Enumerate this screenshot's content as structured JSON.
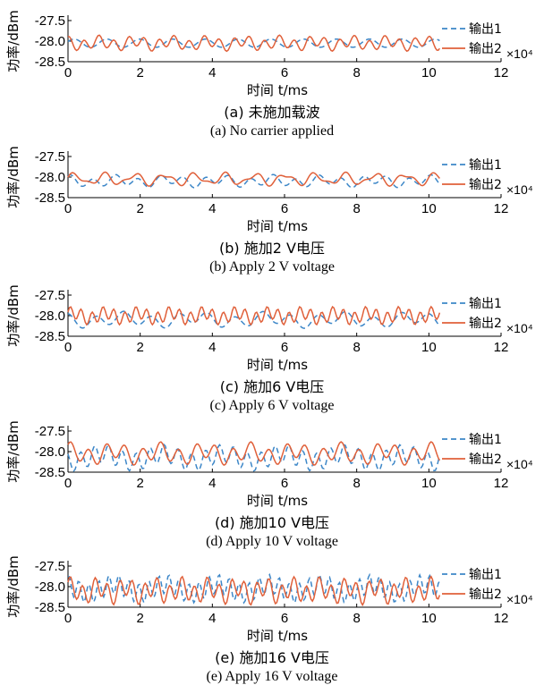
{
  "colors": {
    "series1": "#3d87c8",
    "series2": "#e0603a"
  },
  "chart_data": [
    {
      "type": "line",
      "panel": "a",
      "ylabel": "功率/dBm",
      "xlabel": "时间 t/ms",
      "xlim": [
        0,
        12
      ],
      "ylim": [
        -28.5,
        -27.5
      ],
      "xticks": [
        0,
        2,
        4,
        6,
        8,
        10,
        12
      ],
      "yticks": [
        -27.5,
        -28.0,
        -28.5
      ],
      "x_exponent": "×10⁴",
      "series": [
        {
          "name": "输出1",
          "style": "dashed",
          "x_end": 10.3,
          "freq": [
            1.1
          ],
          "amp": 0.13,
          "mean": -28.05,
          "phase": 0.4
        },
        {
          "name": "输出2",
          "style": "solid",
          "x_end": 10.3,
          "freq": [
            2.4,
            1.0
          ],
          "amp": 0.17,
          "mean": -28.05,
          "phase": 1.2
        }
      ],
      "caption_cn": "(a) 未施加载波",
      "caption_en": "(a) No carrier applied"
    },
    {
      "type": "line",
      "panel": "b",
      "ylabel": "功率/dBm",
      "xlabel": "时间 t/ms",
      "xlim": [
        0,
        12
      ],
      "ylim": [
        -28.5,
        -27.5
      ],
      "xticks": [
        0,
        2,
        4,
        6,
        8,
        10,
        12
      ],
      "yticks": [
        -27.5,
        -28.0,
        -28.5
      ],
      "x_exponent": "×10⁴",
      "series": [
        {
          "name": "输出1",
          "style": "dashed",
          "x_end": 10.3,
          "freq": [
            1.6,
            0.7
          ],
          "amp": 0.14,
          "mean": -28.1,
          "phase": 0.9
        },
        {
          "name": "输出2",
          "style": "solid",
          "x_end": 10.3,
          "freq": [
            1.2,
            2.1
          ],
          "amp": 0.15,
          "mean": -28.05,
          "phase": 0.2
        }
      ],
      "caption_cn": "(b) 施加2 V电压",
      "caption_en": "(b) Apply 2 V voltage"
    },
    {
      "type": "line",
      "panel": "c",
      "ylabel": "功率/dBm",
      "xlabel": "时间 t/ms",
      "xlim": [
        0,
        12
      ],
      "ylim": [
        -28.5,
        -27.5
      ],
      "xticks": [
        0,
        2,
        4,
        6,
        8,
        10,
        12
      ],
      "yticks": [
        -27.5,
        -28.0,
        -28.5
      ],
      "x_exponent": "×10⁴",
      "series": [
        {
          "name": "输出1",
          "style": "dashed",
          "x_end": 10.3,
          "freq": [
            1.3,
            0.5
          ],
          "amp": 0.18,
          "mean": -28.1,
          "phase": 1.5
        },
        {
          "name": "输出2",
          "style": "solid",
          "x_end": 10.3,
          "freq": [
            3.3,
            1.1
          ],
          "amp": 0.2,
          "mean": -28.0,
          "phase": 0.3
        }
      ],
      "caption_cn": "(c) 施加6 V电压",
      "caption_en": "(c) Apply 6 V voltage"
    },
    {
      "type": "line",
      "panel": "d",
      "ylabel": "功率/dBm",
      "xlabel": "时间 t/ms",
      "xlim": [
        0,
        12
      ],
      "ylim": [
        -28.5,
        -27.5
      ],
      "xticks": [
        0,
        2,
        4,
        6,
        8,
        10,
        12
      ],
      "yticks": [
        -27.5,
        -28.0,
        -28.5
      ],
      "x_exponent": "×10⁴",
      "series": [
        {
          "name": "输出1",
          "style": "dashed",
          "x_end": 10.3,
          "freq": [
            2.6,
            0.6
          ],
          "amp": 0.28,
          "mean": -28.15,
          "phase": 2.1
        },
        {
          "name": "输出2",
          "style": "solid",
          "x_end": 10.3,
          "freq": [
            2.0,
            0.8
          ],
          "amp": 0.25,
          "mean": -28.05,
          "phase": 0.7
        }
      ],
      "caption_cn": "(d) 施加10 V电压",
      "caption_en": "(d) Apply 10 V voltage"
    },
    {
      "type": "line",
      "panel": "e",
      "ylabel": "功率/dBm",
      "xlabel": "时间 t/ms",
      "xlim": [
        0,
        12
      ],
      "ylim": [
        -28.5,
        -27.5
      ],
      "xticks": [
        0,
        2,
        4,
        6,
        8,
        10,
        12
      ],
      "yticks": [
        -27.5,
        -28.0,
        -28.5
      ],
      "x_exponent": "×10⁴",
      "series": [
        {
          "name": "输出1",
          "style": "dashed",
          "x_end": 10.3,
          "freq": [
            3.6,
            0.7
          ],
          "amp": 0.3,
          "mean": -28.05,
          "phase": 1.1
        },
        {
          "name": "输出2",
          "style": "solid",
          "x_end": 10.3,
          "freq": [
            2.9,
            1.3
          ],
          "amp": 0.3,
          "mean": -28.1,
          "phase": 0.5
        }
      ],
      "caption_cn": "(e) 施加16 V电压",
      "caption_en": "(e) Apply 16 V voltage"
    }
  ]
}
